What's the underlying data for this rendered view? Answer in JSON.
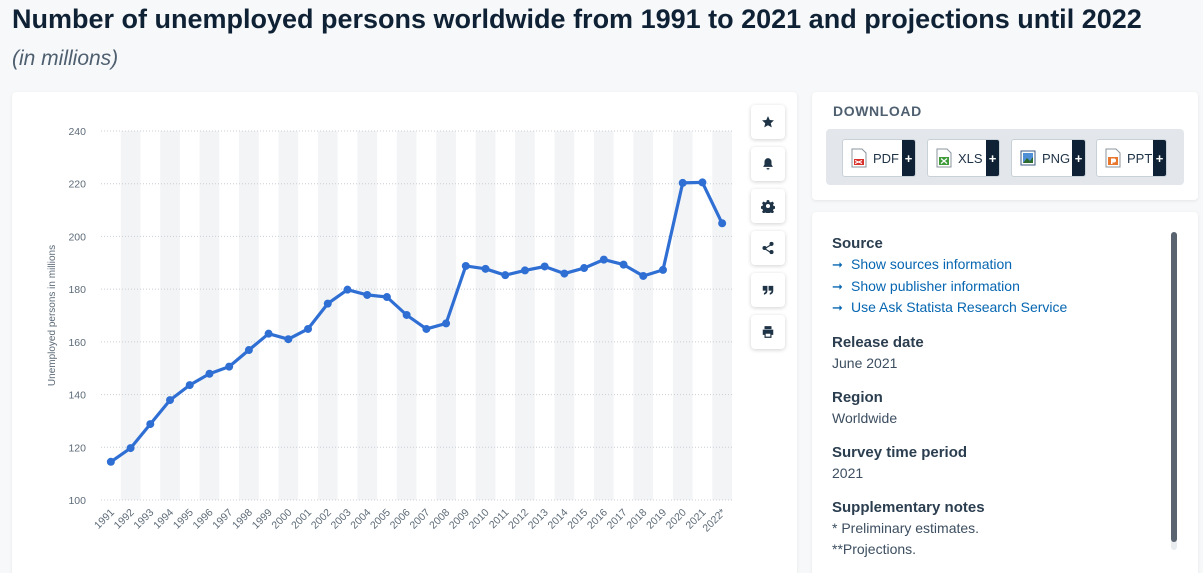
{
  "header": {
    "title": "Number of unemployed persons worldwide from 1991 to 2021 and projections until 2022",
    "subtitle": "(in millions)"
  },
  "toolbar": {
    "buttons": [
      "star-icon",
      "bell-icon",
      "gear-icon",
      "share-icon",
      "quote-icon",
      "print-icon"
    ]
  },
  "download": {
    "title": "DOWNLOAD",
    "buttons": [
      {
        "label": "PDF",
        "icon": "pdf-file-icon",
        "plus": "+"
      },
      {
        "label": "XLS",
        "icon": "xls-file-icon",
        "plus": "+"
      },
      {
        "label": "PNG",
        "icon": "png-file-icon",
        "plus": "+"
      },
      {
        "label": "PPT",
        "icon": "ppt-file-icon",
        "plus": "+"
      }
    ]
  },
  "info": {
    "source_heading": "Source",
    "links": [
      "Show sources information",
      "Show publisher information",
      "Use Ask Statista Research Service"
    ],
    "release_heading": "Release date",
    "release_value": "June 2021",
    "region_heading": "Region",
    "region_value": "Worldwide",
    "period_heading": "Survey time period",
    "period_value": "2021",
    "notes_heading": "Supplementary notes",
    "notes": [
      "* Preliminary estimates.",
      "**Projections."
    ]
  },
  "colors": {
    "line": "#2f6fd4",
    "band": "#f3f4f6",
    "grid": "#c8ced4",
    "title": "#0f2235",
    "link": "#0666b1"
  },
  "chart_data": {
    "type": "line",
    "title": "",
    "xlabel": "",
    "ylabel": "Unemployed persons in millions",
    "ylim": [
      100,
      240
    ],
    "yticks": [
      100,
      120,
      140,
      160,
      180,
      200,
      220,
      240
    ],
    "grid": true,
    "categories": [
      "1991",
      "1992",
      "1993",
      "1994",
      "1995",
      "1996",
      "1997",
      "1998",
      "1999",
      "2000",
      "2001",
      "2002",
      "2003",
      "2004",
      "2005",
      "2006",
      "2007",
      "2008",
      "2009",
      "2010",
      "2011",
      "2012",
      "2013",
      "2014",
      "2015",
      "2016",
      "2017",
      "2018",
      "2019",
      "2020",
      "2021",
      "2022*"
    ],
    "series": [
      {
        "values": [
          114.5,
          119.7,
          128.8,
          137.9,
          143.6,
          147.9,
          150.6,
          156.9,
          163.1,
          161.0,
          164.9,
          174.5,
          179.8,
          177.8,
          177.0,
          170.2,
          164.9,
          167.0,
          188.8,
          187.7,
          185.3,
          187.1,
          188.6,
          185.9,
          188.0,
          191.2,
          189.3,
          185.0,
          187.3,
          220.3,
          220.5,
          205.0
        ]
      }
    ]
  }
}
